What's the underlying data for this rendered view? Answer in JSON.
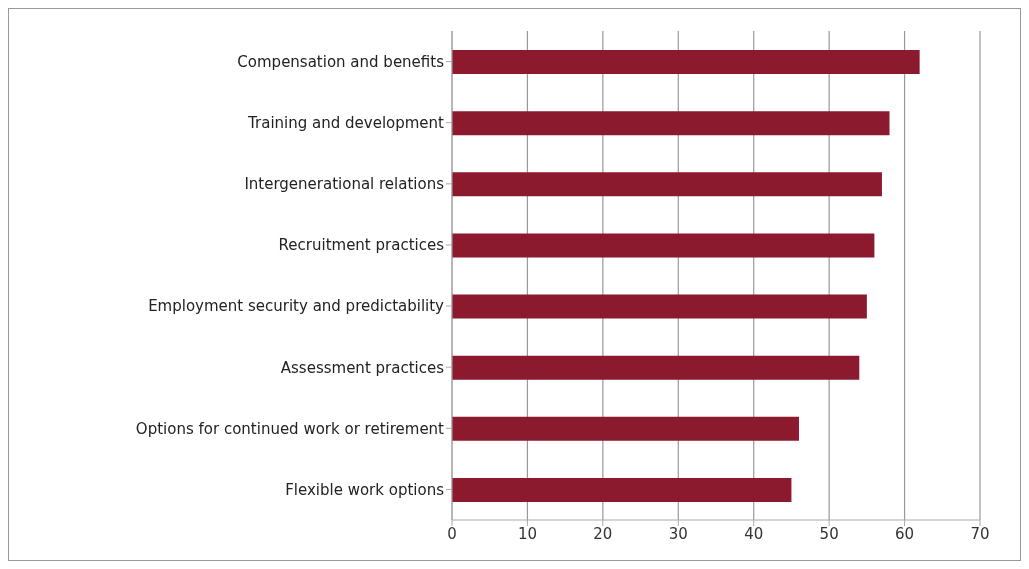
{
  "chart_data": {
    "type": "bar",
    "orientation": "horizontal",
    "categories": [
      "Compensation and benefits",
      "Training and development",
      "Intergenerational relations",
      "Recruitment practices",
      "Employment security and predictability",
      "Assessment practices",
      "Options for continued work or retirement",
      "Flexible work options"
    ],
    "values": [
      62,
      58,
      57,
      56,
      55,
      54,
      46,
      45
    ],
    "color": "#8b1a2e",
    "xlim": [
      0,
      70
    ],
    "xticks": [
      0,
      10,
      20,
      30,
      40,
      50,
      60,
      70
    ],
    "grid": "x"
  }
}
